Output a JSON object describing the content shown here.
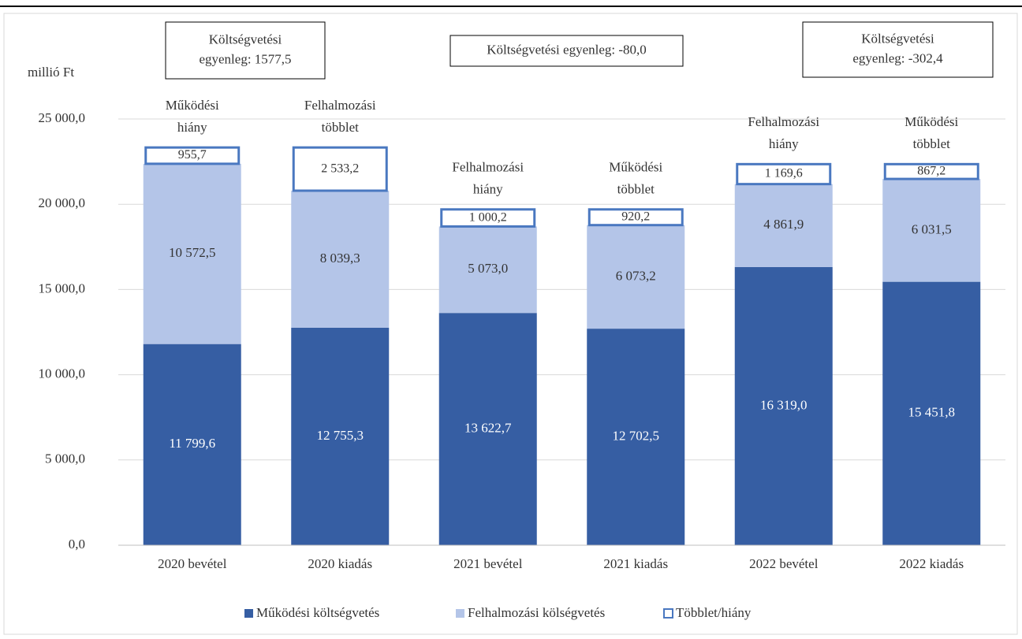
{
  "chart_data": {
    "type": "stacked_bar",
    "y_label": "millió Ft",
    "categories": [
      "2020 bevétel",
      "2020 kiadás",
      "2021 bevétel",
      "2021 kiadás",
      "2022 bevétel",
      "2022 kiadás"
    ],
    "series": [
      {
        "name": "Működési költségvetés",
        "color": "#365ea3",
        "values": [
          11799.6,
          12755.3,
          13622.7,
          12702.5,
          16319.0,
          15451.8
        ],
        "value_labels": [
          "11 799,6",
          "12 755,3",
          "13 622,7",
          "12 702,5",
          "16 319,0",
          "15 451,8"
        ]
      },
      {
        "name": "Felhalmozási kölségvetés",
        "color": "#b4c5e8",
        "values": [
          10572.5,
          8039.3,
          5073.0,
          6073.2,
          4861.9,
          6031.5
        ],
        "value_labels": [
          "10 572,5",
          "8 039,3",
          "5 073,0",
          "6 073,2",
          "4 861,9",
          "6 031,5"
        ]
      },
      {
        "name": "Többlet/hiány",
        "color": "#ffffff",
        "border": "#4a78c0",
        "values": [
          955.7,
          2533.2,
          1000.2,
          920.2,
          1169.6,
          867.2
        ],
        "value_labels": [
          "955,7",
          "2 533,2",
          "1 000,2",
          "920,2",
          "1 169,6",
          "867,2"
        ]
      }
    ],
    "bar_notes": [
      [
        "Működési",
        "hiány"
      ],
      [
        "Felhalmozási",
        "többlet"
      ],
      [
        "Felhalmozási",
        "hiány"
      ],
      [
        "Működési",
        "többlet"
      ],
      [
        "Felhalmozási",
        "hiány"
      ],
      [
        "Működési",
        "többlet"
      ]
    ],
    "balance_boxes": [
      {
        "lines": [
          "Költségvetési",
          "egyenleg: 1577,5"
        ]
      },
      {
        "lines": [
          "Költségvetési egyenleg: -80,0"
        ]
      },
      {
        "lines": [
          "Költségvetési",
          "egyenleg: -302,4"
        ]
      }
    ],
    "ylim": [
      0,
      25000
    ],
    "yticks": [
      {
        "value": 0,
        "label": "0,0"
      },
      {
        "value": 5000,
        "label": "5 000,0"
      },
      {
        "value": 10000,
        "label": "10 000,0"
      },
      {
        "value": 15000,
        "label": "15 000,0"
      },
      {
        "value": 20000,
        "label": "20 000,0"
      },
      {
        "value": 25000,
        "label": "25 000,0"
      }
    ],
    "grid": true,
    "legend": "bottom"
  }
}
